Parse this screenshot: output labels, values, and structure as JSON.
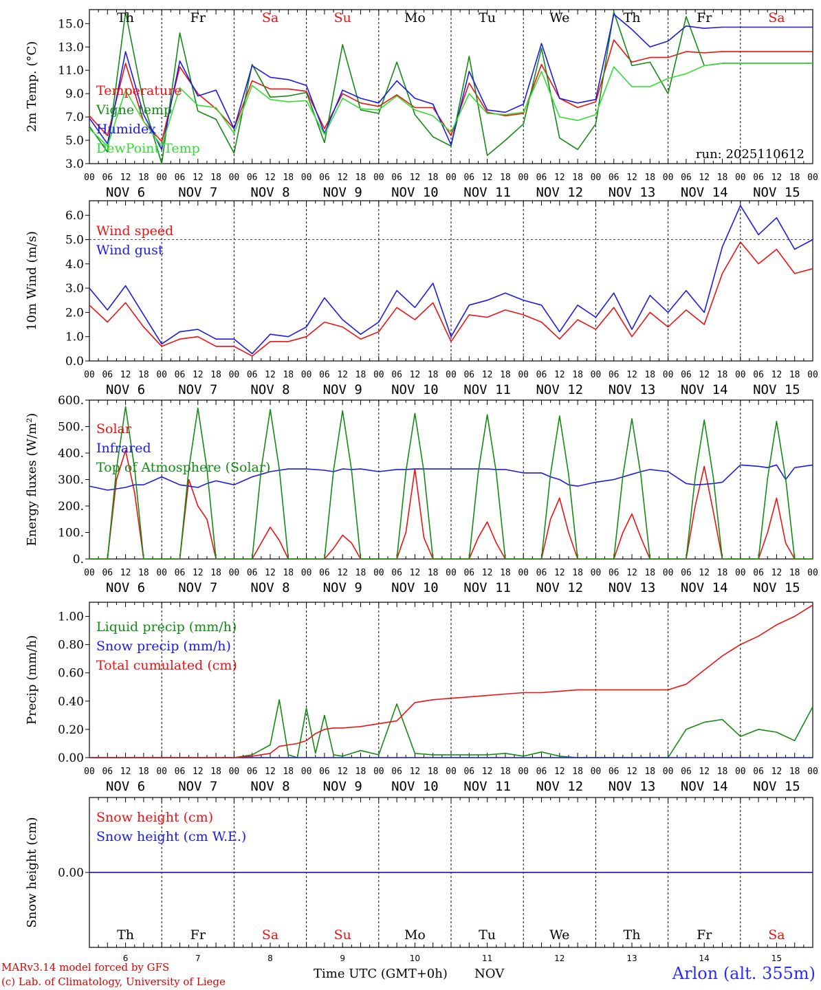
{
  "colors": {
    "red": "#ee1111",
    "green": "#138a13",
    "blue": "#1a1ae6",
    "lightgreen": "#33dd33",
    "black": "#000000",
    "weekend": "#ee1111"
  },
  "common": {
    "hour_ticks": [
      "00",
      "06",
      "12",
      "18"
    ],
    "final_hour": "00",
    "day_labels": [
      "NOV  6",
      "NOV  7",
      "NOV  8",
      "NOV  9",
      "NOV 10",
      "NOV 11",
      "NOV 12",
      "NOV 13",
      "NOV 14",
      "NOV 15"
    ],
    "weekdays": [
      "Th",
      "Fr",
      "Sa",
      "Su",
      "Mo",
      "Tu",
      "We",
      "Th",
      "Fr",
      "Sa"
    ],
    "weekend_flags": [
      false,
      false,
      true,
      true,
      false,
      false,
      false,
      false,
      false,
      true
    ],
    "day_numbers": [
      "6",
      "7",
      "8",
      "9",
      "10",
      "11",
      "12",
      "13",
      "14",
      "15"
    ]
  },
  "footer": {
    "credit_line1": "MARv3.14 model forced by GFS",
    "credit_line2": "(c) Lab. of Climatology, University of Liege",
    "xaxis_title": "Time UTC (GMT+0h)",
    "month_label": "NOV",
    "station": "Arlon (alt. 355m)"
  },
  "chart_data": [
    {
      "type": "line",
      "title": "",
      "ylabel": "2m Temp. (°C)",
      "ylim": [
        3.0,
        16.2
      ],
      "yticks": [
        3.0,
        5.0,
        7.0,
        9.0,
        11.0,
        13.0,
        15.0
      ],
      "tick_decimals": 1,
      "run_label": "run: 2025110612",
      "x_unit": "hours since 2025-11-06 00 UTC (6-hourly)",
      "x": [
        0,
        6,
        12,
        18,
        24,
        30,
        36,
        42,
        48,
        54,
        60,
        66,
        72,
        78,
        84,
        90,
        96,
        102,
        108,
        114,
        120,
        126,
        132,
        138,
        144,
        150,
        156,
        162,
        168,
        174,
        180,
        186,
        192,
        198,
        204,
        210,
        216,
        222,
        228,
        234,
        240
      ],
      "series": [
        {
          "name": "Temperature",
          "color": "#ee1111",
          "values": [
            7.1,
            5.4,
            11.6,
            6.6,
            4.9,
            11.3,
            9.0,
            7.7,
            6.0,
            10.1,
            9.4,
            9.4,
            9.2,
            6.0,
            9.0,
            8.2,
            7.9,
            8.9,
            7.8,
            7.8,
            5.4,
            9.9,
            7.4,
            7.1,
            7.3,
            11.5,
            8.6,
            7.8,
            8.3,
            13.6,
            11.7,
            12.1,
            12.1,
            12.6,
            12.5,
            12.6,
            12.6,
            12.6,
            12.6,
            12.6,
            12.6
          ]
        },
        {
          "name": "Vigne temp",
          "color": "#138a13",
          "values": [
            6.2,
            4.0,
            16.0,
            8.2,
            3.0,
            14.2,
            7.5,
            6.8,
            3.9,
            11.5,
            8.7,
            8.8,
            9.1,
            4.8,
            13.2,
            7.6,
            7.3,
            11.7,
            7.2,
            5.3,
            4.5,
            12.2,
            3.7,
            5.0,
            6.4,
            12.9,
            5.2,
            4.2,
            6.4,
            16.0,
            11.4,
            11.7,
            9.0,
            15.6,
            11.4,
            11.6,
            11.6,
            11.6,
            11.6,
            11.6,
            11.6
          ]
        },
        {
          "name": "Humidex",
          "color": "#1a1ae6",
          "values": [
            6.9,
            4.7,
            12.6,
            7.2,
            4.2,
            11.8,
            8.8,
            9.3,
            6.0,
            11.4,
            10.4,
            10.2,
            9.7,
            5.6,
            9.3,
            8.6,
            8.2,
            10.1,
            8.6,
            8.1,
            4.6,
            10.9,
            7.6,
            7.4,
            8.1,
            13.3,
            8.6,
            8.2,
            8.5,
            15.8,
            14.5,
            13.0,
            13.5,
            14.8,
            14.6,
            14.7,
            14.7,
            14.7,
            14.7,
            14.7,
            14.7
          ]
        },
        {
          "name": "DewPoint Temp",
          "color": "#33dd33",
          "values": [
            6.0,
            4.5,
            9.3,
            6.6,
            4.5,
            9.5,
            8.0,
            7.8,
            5.6,
            9.7,
            8.5,
            8.3,
            8.4,
            5.5,
            8.6,
            7.7,
            7.6,
            8.8,
            7.6,
            7.1,
            5.7,
            9.0,
            7.3,
            7.2,
            7.4,
            10.9,
            7.0,
            6.7,
            7.2,
            11.3,
            9.6,
            9.6,
            10.3,
            10.7,
            11.4,
            11.6,
            11.6,
            11.6,
            11.6,
            11.6,
            11.6
          ]
        }
      ],
      "legend": [
        "Temperature",
        "Vigne temp",
        "Humidex",
        "DewPoint Temp"
      ],
      "legend_position": "top-left"
    },
    {
      "type": "line",
      "title": "",
      "ylabel": "10m Wind (m/s)",
      "ylim": [
        0.0,
        6.6
      ],
      "yticks": [
        0.0,
        1.0,
        2.0,
        3.0,
        4.0,
        5.0,
        6.0
      ],
      "tick_decimals": 1,
      "reference_line": 5.0,
      "x": [
        0,
        6,
        12,
        18,
        24,
        30,
        36,
        42,
        48,
        54,
        60,
        66,
        72,
        78,
        84,
        90,
        96,
        102,
        108,
        114,
        120,
        126,
        132,
        138,
        144,
        150,
        156,
        162,
        168,
        174,
        180,
        186,
        192,
        198,
        204,
        210,
        216,
        222,
        228,
        234,
        240
      ],
      "series": [
        {
          "name": "Wind speed",
          "color": "#ee1111",
          "values": [
            2.3,
            1.6,
            2.4,
            1.4,
            0.6,
            0.9,
            1.0,
            0.6,
            0.6,
            0.2,
            0.8,
            0.8,
            1.0,
            1.6,
            1.4,
            0.9,
            1.2,
            2.2,
            1.7,
            2.4,
            0.8,
            1.9,
            1.8,
            2.1,
            1.9,
            1.6,
            0.9,
            1.7,
            1.3,
            2.2,
            1.0,
            2.0,
            1.4,
            2.1,
            1.5,
            3.6,
            4.9,
            4.0,
            4.6,
            3.6,
            3.8
          ]
        },
        {
          "name": "Wind gust",
          "color": "#1a1ae6",
          "values": [
            3.0,
            2.1,
            3.1,
            1.9,
            0.7,
            1.2,
            1.3,
            0.9,
            0.9,
            0.3,
            1.1,
            1.0,
            1.4,
            2.6,
            1.7,
            1.1,
            1.6,
            2.9,
            2.2,
            3.2,
            1.0,
            2.3,
            2.5,
            2.8,
            2.5,
            2.3,
            1.2,
            2.3,
            1.8,
            2.8,
            1.3,
            2.7,
            2.0,
            2.9,
            2.0,
            4.7,
            6.4,
            5.2,
            5.9,
            4.6,
            5.0
          ]
        }
      ],
      "legend": [
        "Wind speed",
        "Wind gust"
      ],
      "legend_position": "top-left"
    },
    {
      "type": "line",
      "title": "",
      "ylabel": "Energy fluxes (W/m²)",
      "ylim": [
        0,
        600
      ],
      "yticks": [
        0,
        100,
        200,
        300,
        400,
        500,
        600
      ],
      "tick_decimals": 0,
      "tick_suffix": ".",
      "x": [
        0,
        6,
        9,
        12,
        15,
        18,
        24,
        30,
        33,
        36,
        39,
        42,
        48,
        54,
        57,
        60,
        63,
        66,
        72,
        78,
        81,
        84,
        87,
        90,
        96,
        102,
        105,
        108,
        111,
        114,
        120,
        126,
        129,
        132,
        135,
        138,
        144,
        150,
        153,
        156,
        159,
        162,
        168,
        174,
        177,
        180,
        183,
        186,
        192,
        198,
        201,
        204,
        207,
        210,
        216,
        222,
        225,
        228,
        231,
        234,
        240
      ],
      "series": [
        {
          "name": "Solar",
          "color": "#ee1111",
          "values": [
            0,
            0,
            300,
            410,
            250,
            0,
            0,
            0,
            300,
            200,
            150,
            0,
            0,
            0,
            60,
            120,
            70,
            0,
            0,
            0,
            40,
            90,
            60,
            0,
            0,
            0,
            100,
            340,
            80,
            0,
            0,
            0,
            80,
            140,
            60,
            0,
            0,
            0,
            150,
            230,
            100,
            0,
            0,
            0,
            100,
            170,
            80,
            0,
            0,
            0,
            200,
            350,
            180,
            0,
            0,
            0,
            100,
            230,
            60,
            0,
            0
          ]
        },
        {
          "name": "Infrared",
          "color": "#1a1ae6",
          "values": [
            275,
            260,
            265,
            270,
            280,
            280,
            310,
            280,
            275,
            270,
            285,
            295,
            280,
            310,
            320,
            330,
            335,
            340,
            340,
            335,
            330,
            340,
            338,
            340,
            330,
            338,
            338,
            340,
            340,
            340,
            340,
            340,
            340,
            340,
            338,
            338,
            325,
            325,
            310,
            300,
            280,
            275,
            290,
            300,
            310,
            320,
            330,
            338,
            330,
            285,
            280,
            282,
            285,
            290,
            355,
            350,
            345,
            355,
            300,
            345,
            355
          ]
        },
        {
          "name": "Top of Atmosphere (Solar)",
          "color": "#138a13",
          "values": [
            0,
            0,
            340,
            575,
            340,
            0,
            0,
            0,
            340,
            570,
            340,
            0,
            0,
            0,
            340,
            565,
            340,
            0,
            0,
            0,
            335,
            560,
            335,
            0,
            0,
            0,
            330,
            550,
            330,
            0,
            0,
            0,
            325,
            545,
            325,
            0,
            0,
            0,
            320,
            540,
            320,
            0,
            0,
            0,
            315,
            530,
            315,
            0,
            0,
            0,
            310,
            525,
            310,
            0,
            0,
            0,
            305,
            520,
            305,
            0,
            0
          ]
        }
      ],
      "legend": [
        "Solar",
        "Infrared",
        "Top of Atmosphere (Solar)"
      ],
      "legend_position": "top-left"
    },
    {
      "type": "line",
      "title": "",
      "ylabel": "Precip (mm/h)",
      "ylim": [
        0.0,
        1.1
      ],
      "yticks": [
        0.0,
        0.2,
        0.4,
        0.6,
        0.8,
        1.0
      ],
      "tick_decimals": 2,
      "x": [
        0,
        6,
        12,
        18,
        24,
        30,
        36,
        42,
        48,
        54,
        60,
        63,
        66,
        69,
        72,
        75,
        78,
        81,
        84,
        90,
        96,
        102,
        108,
        114,
        120,
        126,
        132,
        138,
        144,
        150,
        156,
        162,
        168,
        174,
        180,
        186,
        192,
        198,
        204,
        210,
        216,
        222,
        228,
        234,
        240
      ],
      "series": [
        {
          "name": "Liquid precip (mm/h)",
          "color": "#138a13",
          "values": [
            0,
            0,
            0,
            0,
            0,
            0,
            0,
            0,
            0,
            0.02,
            0.09,
            0.41,
            0.02,
            0,
            0.35,
            0.03,
            0.3,
            0.02,
            0.01,
            0.05,
            0.02,
            0.38,
            0.03,
            0.02,
            0.02,
            0.02,
            0.02,
            0.03,
            0.01,
            0.04,
            0.01,
            0,
            0,
            0,
            0,
            0,
            0,
            0.2,
            0.25,
            0.27,
            0.15,
            0.2,
            0.18,
            0.12,
            0.36
          ]
        },
        {
          "name": "Snow precip (mm/h)",
          "color": "#1a1ae6",
          "values": [
            0,
            0,
            0,
            0,
            0,
            0,
            0,
            0,
            0,
            0,
            0,
            0,
            0,
            0,
            0,
            0,
            0,
            0,
            0,
            0,
            0,
            0,
            0,
            0,
            0,
            0,
            0,
            0,
            0,
            0,
            0,
            0,
            0,
            0,
            0,
            0,
            0,
            0,
            0,
            0,
            0,
            0,
            0,
            0,
            0
          ]
        },
        {
          "name": "Total cumulated (cm)",
          "color": "#ee1111",
          "values": [
            0,
            0,
            0,
            0,
            0,
            0,
            0,
            0,
            0,
            0.01,
            0.03,
            0.08,
            0.09,
            0.1,
            0.12,
            0.17,
            0.2,
            0.21,
            0.21,
            0.22,
            0.24,
            0.26,
            0.39,
            0.41,
            0.42,
            0.43,
            0.44,
            0.45,
            0.46,
            0.46,
            0.47,
            0.48,
            0.48,
            0.48,
            0.48,
            0.48,
            0.48,
            0.52,
            0.62,
            0.72,
            0.8,
            0.86,
            0.94,
            1.0,
            1.08
          ]
        }
      ],
      "legend": [
        "Liquid precip (mm/h)",
        "Snow precip (mm/h)",
        "Total cumulated (cm)"
      ],
      "legend_position": "top-left"
    },
    {
      "type": "line",
      "title": "",
      "ylabel": "Snow height (cm)",
      "ylim": [
        -1,
        1
      ],
      "yticks": [
        0.0
      ],
      "tick_decimals": 2,
      "x": [
        0,
        240
      ],
      "series": [
        {
          "name": "Snow height (cm)",
          "color": "#ee1111",
          "values": [
            0,
            0
          ]
        },
        {
          "name": "Snow height (cm W.E.)",
          "color": "#1a1ae6",
          "values": [
            0,
            0
          ]
        }
      ],
      "legend": [
        "Snow height (cm)",
        "Snow height (cm W.E.)"
      ],
      "legend_position": "top-left"
    }
  ]
}
